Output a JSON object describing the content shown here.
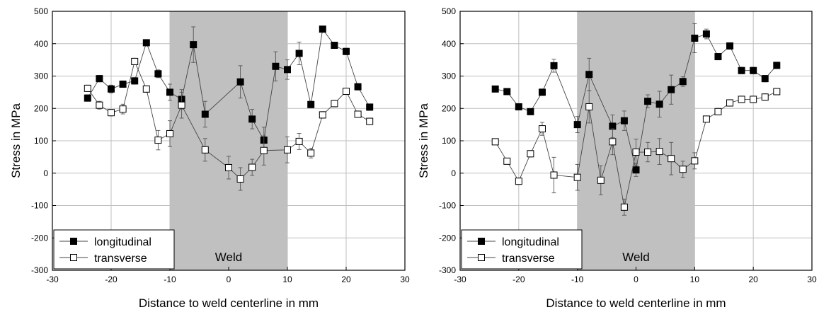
{
  "chart_data": [
    {
      "type": "line",
      "xlabel": "Distance to weld centerline in mm",
      "ylabel": "Stress in MPa",
      "xlim": [
        -30,
        30
      ],
      "ylim": [
        -300,
        500
      ],
      "xticks": [
        -30,
        -20,
        -10,
        0,
        10,
        20,
        30
      ],
      "yticks": [
        -300,
        -200,
        -100,
        0,
        100,
        200,
        300,
        400,
        500
      ],
      "grid": true,
      "legend_position": "bottom-left",
      "shaded_region": {
        "x": [
          -10,
          10
        ],
        "label": "Weld",
        "color": "#c0c0c0"
      },
      "series": [
        {
          "name": "longitudinal",
          "marker": "filled-square",
          "x": [
            -24,
            -22,
            -20,
            -18,
            -16,
            -14,
            -12,
            -10,
            -8,
            -6,
            -4,
            2,
            4,
            6,
            8,
            10,
            12,
            14,
            16,
            18,
            20,
            22,
            24
          ],
          "y": [
            232,
            292,
            260,
            275,
            285,
            403,
            307,
            250,
            228,
            397,
            182,
            282,
            167,
            102,
            330,
            320,
            370,
            212,
            445,
            395,
            376,
            267,
            204
          ],
          "error": [
            10,
            10,
            12,
            10,
            10,
            8,
            12,
            25,
            30,
            55,
            40,
            50,
            30,
            40,
            45,
            30,
            35,
            10,
            8,
            8,
            10,
            10,
            10
          ]
        },
        {
          "name": "transverse",
          "marker": "open-square",
          "x": [
            -24,
            -22,
            -20,
            -18,
            -16,
            -14,
            -12,
            -10,
            -8,
            -4,
            0,
            2,
            4,
            6,
            10,
            12,
            14,
            16,
            18,
            20,
            22,
            24
          ],
          "y": [
            262,
            210,
            187,
            198,
            345,
            260,
            102,
            122,
            210,
            72,
            17,
            -18,
            18,
            70,
            72,
            98,
            62,
            180,
            215,
            253,
            182,
            160
          ],
          "error": [
            10,
            12,
            10,
            15,
            10,
            10,
            30,
            40,
            40,
            35,
            35,
            35,
            25,
            45,
            40,
            25,
            15,
            10,
            10,
            10,
            10,
            10
          ]
        }
      ]
    },
    {
      "type": "line",
      "xlabel": "Distance to weld centerline in mm",
      "ylabel": "Stress in MPa",
      "xlim": [
        -30,
        30
      ],
      "ylim": [
        -300,
        500
      ],
      "xticks": [
        -30,
        -20,
        -10,
        0,
        10,
        20,
        30
      ],
      "yticks": [
        -300,
        -200,
        -100,
        0,
        100,
        200,
        300,
        400,
        500
      ],
      "grid": true,
      "legend_position": "bottom-left",
      "shaded_region": {
        "x": [
          -10,
          10
        ],
        "label": "Weld",
        "color": "#c0c0c0"
      },
      "series": [
        {
          "name": "longitudinal",
          "marker": "filled-square",
          "x": [
            -24,
            -22,
            -20,
            -18,
            -16,
            -14,
            -10,
            -8,
            -4,
            -2,
            0,
            2,
            4,
            6,
            8,
            10,
            12,
            14,
            16,
            18,
            20,
            22,
            24
          ],
          "y": [
            260,
            252,
            205,
            190,
            250,
            332,
            150,
            305,
            145,
            162,
            10,
            222,
            213,
            258,
            283,
            417,
            430,
            360,
            393,
            317,
            317,
            292,
            333
          ],
          "error": [
            8,
            8,
            10,
            8,
            10,
            20,
            25,
            50,
            35,
            30,
            20,
            20,
            40,
            45,
            15,
            45,
            15,
            10,
            10,
            10,
            10,
            10,
            10
          ]
        },
        {
          "name": "transverse",
          "marker": "open-square",
          "x": [
            -24,
            -22,
            -20,
            -18,
            -16,
            -14,
            -10,
            -8,
            -6,
            -4,
            -2,
            0,
            2,
            4,
            6,
            8,
            10,
            12,
            14,
            16,
            18,
            20,
            22,
            24
          ],
          "y": [
            97,
            37,
            -25,
            60,
            137,
            -6,
            -13,
            205,
            -22,
            97,
            -105,
            65,
            65,
            67,
            45,
            12,
            38,
            167,
            190,
            217,
            228,
            228,
            235,
            252
          ],
          "error": [
            8,
            8,
            10,
            10,
            20,
            55,
            40,
            50,
            45,
            40,
            25,
            40,
            30,
            40,
            50,
            25,
            25,
            8,
            10,
            10,
            10,
            10,
            10,
            10
          ]
        }
      ]
    }
  ]
}
